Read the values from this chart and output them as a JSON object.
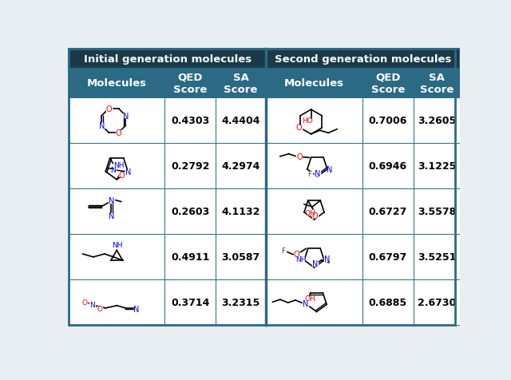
{
  "header1_text": "Initial generation molecules",
  "header2_text": "Second generation molecules",
  "col_headers": [
    "Molecules",
    "QED\nScore",
    "SA\nScore",
    "Molecules",
    "QED\nScore",
    "SA\nScore"
  ],
  "rows": [
    {
      "qed1": "0.4303",
      "sa1": "4.4404",
      "qed2": "0.7006",
      "sa2": "3.2605"
    },
    {
      "qed1": "0.2792",
      "sa1": "4.2974",
      "qed2": "0.6946",
      "sa2": "3.1225"
    },
    {
      "qed1": "0.2603",
      "sa1": "4.1132",
      "qed2": "0.6727",
      "sa2": "3.5578"
    },
    {
      "qed1": "0.4911",
      "sa1": "3.0587",
      "qed2": "0.6797",
      "sa2": "3.5251"
    },
    {
      "qed1": "0.3714",
      "sa1": "3.2315",
      "qed2": "0.6885",
      "sa2": "2.6730"
    }
  ],
  "header_dark_bg": "#1a3a4a",
  "header_mid_bg": "#2a6a84",
  "header_text_color": "#ffffff",
  "cell_bg": "#ffffff",
  "border_color": "#2a6a84",
  "data_text_color": "#000000",
  "fig_bg": "#e8eef2",
  "fig_width": 6.4,
  "fig_height": 4.77,
  "dpi": 100
}
